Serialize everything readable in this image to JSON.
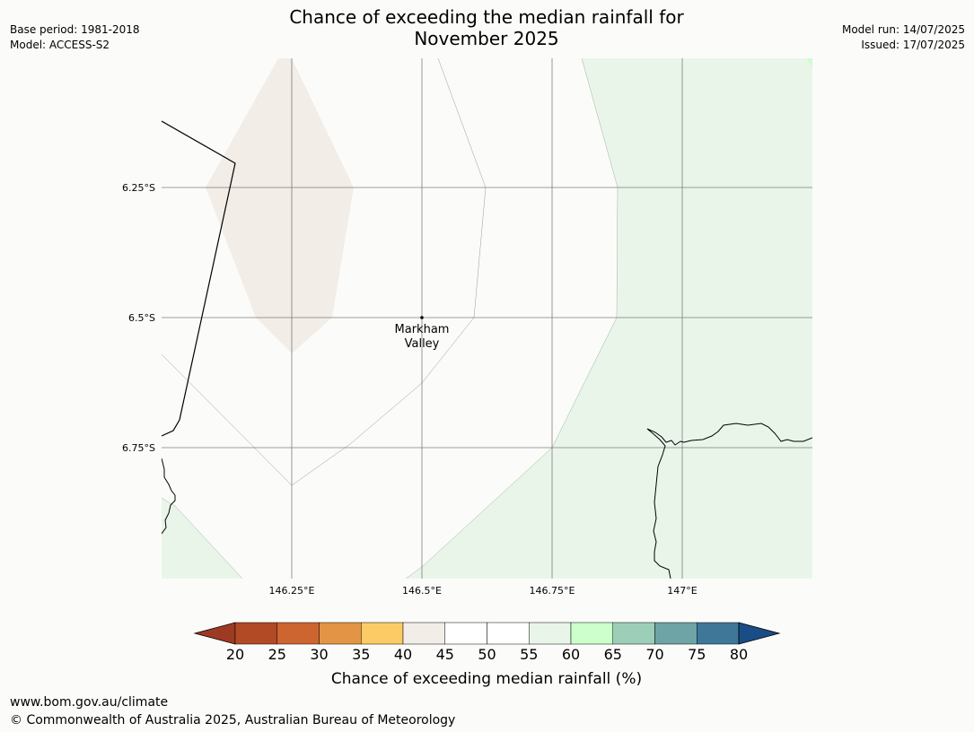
{
  "header": {
    "title_line1": "Chance of exceeding the median rainfall for",
    "title_line2": "November 2025",
    "base_period": "Base period: 1981-2018",
    "model": "Model: ACCESS-S2",
    "model_run": "Model run: 14/07/2025",
    "issued": "Issued: 17/07/2025"
  },
  "map": {
    "place": {
      "name_line1": "Markham",
      "name_line2": "Valley",
      "lat": -6.5,
      "lon": 146.5
    },
    "lat_ticks": [
      "6.25°S",
      "6.5°S",
      "6.75°S"
    ],
    "lon_ticks": [
      "146.25°E",
      "146.5°E",
      "146.75°E",
      "147°E"
    ],
    "colors": {
      "band_40_45": "#f2ede7",
      "band_45_55": "#fbfcfa",
      "band_55_60": "#eaf5ea",
      "band_60_65": "#ccffcc",
      "coastline": "#000000",
      "gridline": "#555555"
    }
  },
  "colorbar": {
    "ticks": [
      "20",
      "25",
      "30",
      "35",
      "40",
      "45",
      "50",
      "55",
      "60",
      "65",
      "70",
      "75",
      "80"
    ],
    "colors": [
      "#9e3a23",
      "#b24a26",
      "#cd6530",
      "#e39545",
      "#fdcb65",
      "#f2ede7",
      "#ffffff",
      "#ffffff",
      "#eaf5ea",
      "#ccffcc",
      "#9dcfb8",
      "#6ea4a6",
      "#3f7799",
      "#1a4d86"
    ],
    "label": "Chance of exceeding median rainfall (%)"
  },
  "footer": {
    "url": "www.bom.gov.au/climate",
    "copyright": "© Commonwealth of Australia 2025, Australian Bureau of Meteorology"
  }
}
